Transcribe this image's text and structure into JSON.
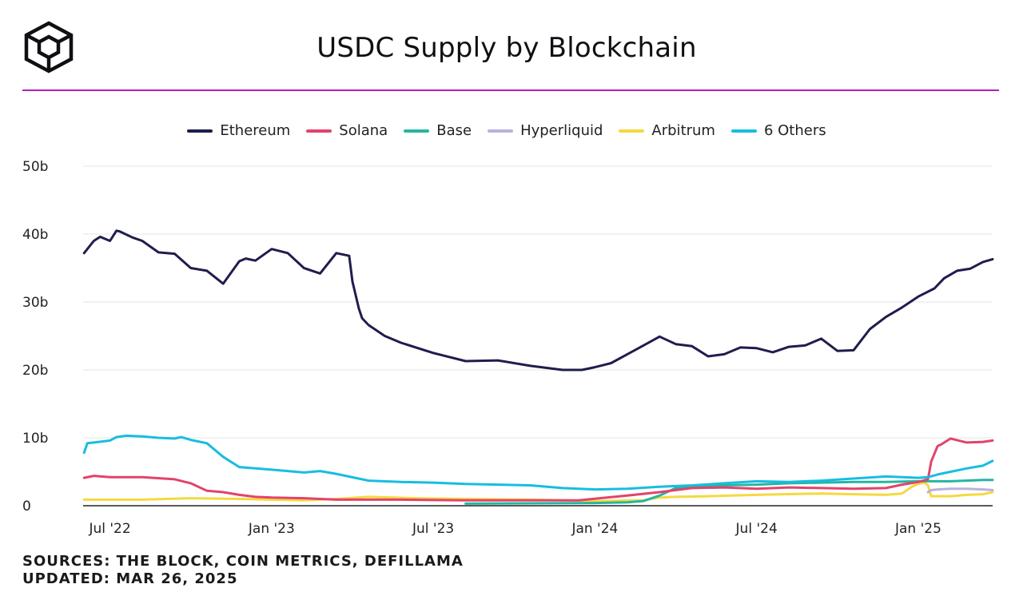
{
  "header": {
    "title": "USDC Supply by Blockchain",
    "logo": "the-block-cube-logo"
  },
  "footer": {
    "sources": "SOURCES: THE BLOCK, COIN METRICS, DEFILLAMA",
    "updated": "UPDATED: MAR 26, 2025"
  },
  "chart_data": {
    "type": "line",
    "title": "USDC Supply by Blockchain",
    "ylabel": "",
    "xlabel": "",
    "ylim": [
      0,
      50
    ],
    "y_ticks": [
      0,
      10,
      20,
      30,
      40,
      50
    ],
    "y_tick_labels": [
      "0",
      "10b",
      "20b",
      "30b",
      "40b",
      "50b"
    ],
    "xlim": [
      2022.417,
      2025.23
    ],
    "x_ticks": [
      2022.5,
      2023.0,
      2023.5,
      2024.0,
      2024.5,
      2025.0
    ],
    "x_tick_labels": [
      "Jul '22",
      "Jan '23",
      "Jul '23",
      "Jan '24",
      "Jul '24",
      "Jan '25"
    ],
    "grid": true,
    "legend_position": "top-center",
    "series": [
      {
        "name": "Ethereum",
        "color": "#1f1d4d",
        "x": [
          2022.42,
          2022.45,
          2022.47,
          2022.5,
          2022.52,
          2022.53,
          2022.57,
          2022.6,
          2022.65,
          2022.7,
          2022.75,
          2022.8,
          2022.85,
          2022.9,
          2022.92,
          2022.95,
          2023.0,
          2023.05,
          2023.1,
          2023.15,
          2023.2,
          2023.24,
          2023.25,
          2023.27,
          2023.28,
          2023.3,
          2023.35,
          2023.4,
          2023.5,
          2023.6,
          2023.7,
          2023.8,
          2023.9,
          2023.96,
          2024.0,
          2024.05,
          2024.1,
          2024.15,
          2024.2,
          2024.25,
          2024.3,
          2024.35,
          2024.4,
          2024.45,
          2024.5,
          2024.55,
          2024.6,
          2024.65,
          2024.7,
          2024.75,
          2024.8,
          2024.85,
          2024.9,
          2024.95,
          2025.0,
          2025.05,
          2025.08,
          2025.12,
          2025.16,
          2025.2,
          2025.23
        ],
        "values": [
          37.2,
          39.0,
          39.6,
          39.0,
          40.5,
          40.4,
          39.5,
          39.0,
          37.3,
          37.1,
          35.0,
          34.6,
          32.7,
          36.0,
          36.4,
          36.1,
          37.8,
          37.2,
          35.0,
          34.2,
          37.2,
          36.8,
          33.0,
          29.0,
          27.6,
          26.6,
          25.0,
          24.0,
          22.5,
          21.3,
          21.4,
          20.6,
          20.0,
          20.0,
          20.4,
          21.0,
          22.3,
          23.6,
          24.9,
          23.8,
          23.5,
          22.0,
          22.3,
          23.3,
          23.2,
          22.6,
          23.4,
          23.6,
          24.6,
          22.8,
          22.9,
          26.0,
          27.8,
          29.2,
          30.8,
          32.0,
          33.5,
          34.6,
          34.9,
          35.9,
          36.3
        ]
      },
      {
        "name": "Solana",
        "color": "#e2436b",
        "x": [
          2022.42,
          2022.45,
          2022.5,
          2022.6,
          2022.7,
          2022.75,
          2022.8,
          2022.85,
          2022.9,
          2022.95,
          2023.0,
          2023.1,
          2023.2,
          2023.4,
          2023.6,
          2023.8,
          2023.95,
          2024.1,
          2024.2,
          2024.3,
          2024.4,
          2024.5,
          2024.6,
          2024.7,
          2024.8,
          2024.9,
          2024.95,
          2025.0,
          2025.03,
          2025.04,
          2025.06,
          2025.07,
          2025.1,
          2025.15,
          2025.2,
          2025.23
        ],
        "values": [
          4.1,
          4.4,
          4.2,
          4.2,
          3.9,
          3.3,
          2.2,
          2.0,
          1.6,
          1.3,
          1.2,
          1.1,
          0.9,
          0.9,
          0.8,
          0.8,
          0.8,
          1.5,
          2.0,
          2.6,
          2.7,
          2.5,
          2.7,
          2.6,
          2.5,
          2.6,
          3.1,
          3.5,
          3.9,
          6.5,
          8.8,
          9.0,
          9.9,
          9.3,
          9.4,
          9.6
        ]
      },
      {
        "name": "Base",
        "color": "#26b5a0",
        "x": [
          2023.6,
          2023.8,
          2024.0,
          2024.1,
          2024.15,
          2024.2,
          2024.25,
          2024.3,
          2024.4,
          2024.5,
          2024.6,
          2024.7,
          2024.8,
          2024.9,
          2025.0,
          2025.1,
          2025.2,
          2025.23
        ],
        "values": [
          0.3,
          0.35,
          0.4,
          0.5,
          0.7,
          1.5,
          2.6,
          2.8,
          3.0,
          3.1,
          3.3,
          3.4,
          3.5,
          3.5,
          3.6,
          3.6,
          3.8,
          3.8
        ]
      },
      {
        "name": "Hyperliquid",
        "color": "#b9b2dd",
        "x": [
          2025.03,
          2025.04,
          2025.06,
          2025.1,
          2025.15,
          2025.2,
          2025.23
        ],
        "values": [
          2.0,
          2.3,
          2.4,
          2.5,
          2.5,
          2.4,
          2.3
        ]
      },
      {
        "name": "Arbitrum",
        "color": "#f4d941",
        "x": [
          2022.42,
          2022.6,
          2022.75,
          2022.9,
          2023.0,
          2023.1,
          2023.2,
          2023.3,
          2023.45,
          2023.6,
          2023.8,
          2024.0,
          2024.15,
          2024.2,
          2024.25,
          2024.35,
          2024.5,
          2024.7,
          2024.8,
          2024.9,
          2024.95,
          2024.98,
          2025.0,
          2025.02,
          2025.03,
          2025.04,
          2025.1,
          2025.15,
          2025.2,
          2025.23
        ],
        "values": [
          0.9,
          0.9,
          1.1,
          1.0,
          0.9,
          0.8,
          1.0,
          1.3,
          1.1,
          1.0,
          0.9,
          0.7,
          0.8,
          1.2,
          1.3,
          1.4,
          1.6,
          1.8,
          1.7,
          1.6,
          1.8,
          2.8,
          3.2,
          3.4,
          3.0,
          1.4,
          1.4,
          1.6,
          1.7,
          2.0
        ]
      },
      {
        "name": "6 Others",
        "color": "#18bde0",
        "x": [
          2022.42,
          2022.43,
          2022.45,
          2022.5,
          2022.52,
          2022.55,
          2022.6,
          2022.65,
          2022.7,
          2022.72,
          2022.75,
          2022.8,
          2022.85,
          2022.9,
          2023.0,
          2023.05,
          2023.1,
          2023.15,
          2023.2,
          2023.3,
          2023.4,
          2023.5,
          2023.6,
          2023.7,
          2023.8,
          2023.9,
          2024.0,
          2024.1,
          2024.2,
          2024.3,
          2024.4,
          2024.5,
          2024.6,
          2024.7,
          2024.8,
          2024.9,
          2025.0,
          2025.03,
          2025.06,
          2025.1,
          2025.15,
          2025.2,
          2025.23
        ],
        "values": [
          7.8,
          9.2,
          9.3,
          9.6,
          10.1,
          10.3,
          10.2,
          10.0,
          9.9,
          10.1,
          9.7,
          9.2,
          7.2,
          5.7,
          5.3,
          5.1,
          4.9,
          5.1,
          4.7,
          3.7,
          3.5,
          3.4,
          3.2,
          3.1,
          3.0,
          2.6,
          2.4,
          2.5,
          2.8,
          3.0,
          3.3,
          3.6,
          3.5,
          3.7,
          4.0,
          4.3,
          4.1,
          4.2,
          4.6,
          5.0,
          5.5,
          5.9,
          6.6
        ]
      }
    ]
  }
}
